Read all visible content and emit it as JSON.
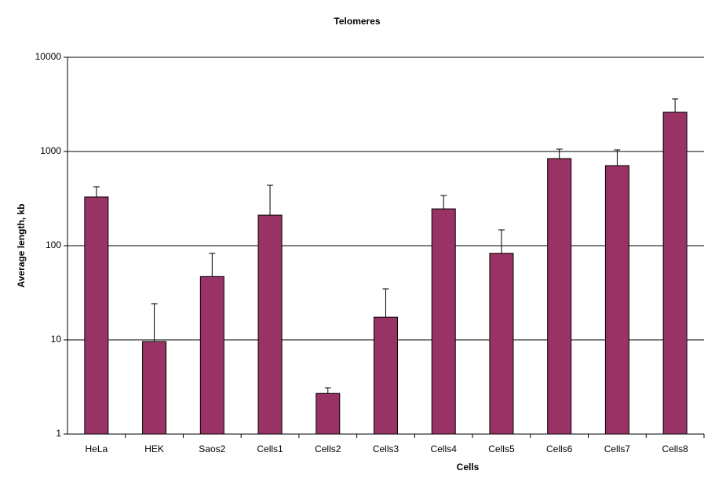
{
  "chart_data": {
    "type": "bar",
    "title": "Telomeres",
    "x_label": "Cells",
    "y_label": "Average length, kb",
    "categories": [
      "HeLa",
      "HEK",
      "Saos2",
      "Cells1",
      "Cells2",
      "Cells3",
      "Cells4",
      "Cells5",
      "Cells6",
      "Cells7",
      "Cells8"
    ],
    "values": [
      329,
      9.6,
      47,
      211,
      2.7,
      17.4,
      246,
      83,
      841,
      708,
      2610
    ],
    "errors": [
      93,
      14.6,
      36,
      227,
      0.4,
      17.4,
      95,
      64,
      218,
      331,
      1007
    ],
    "color": "#993366",
    "ylim": [
      1,
      10000
    ],
    "yticks": [
      1,
      10,
      100,
      1000,
      10000
    ],
    "log_scale": true,
    "grid": true
  }
}
